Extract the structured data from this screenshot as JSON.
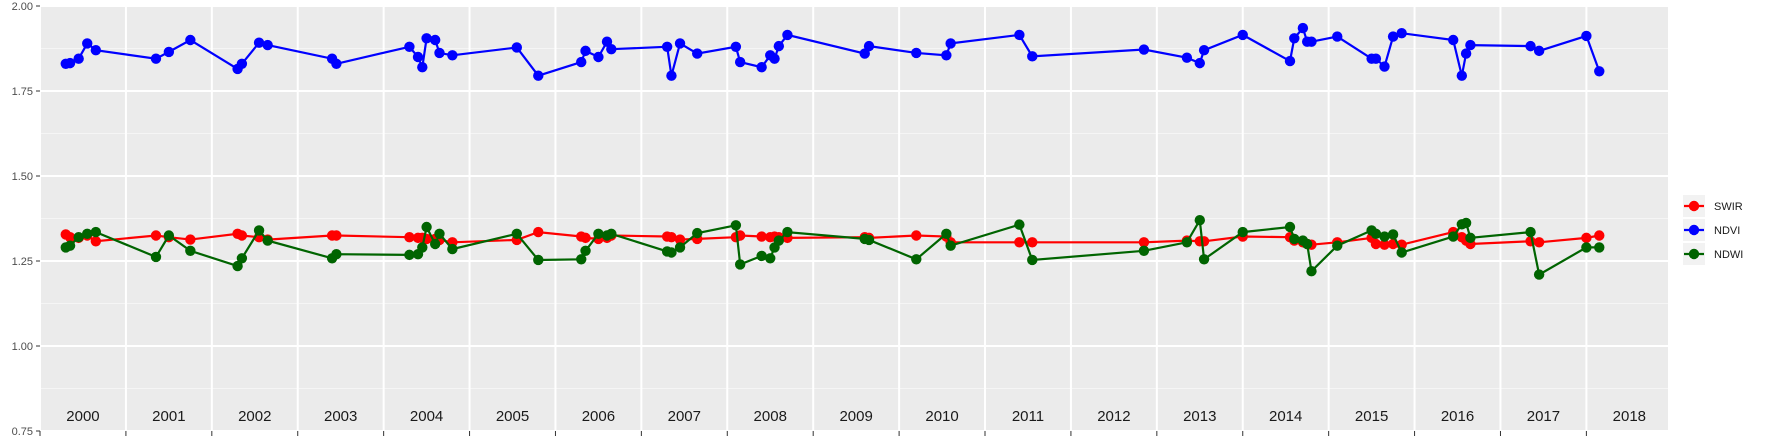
{
  "chart_data": {
    "type": "line",
    "title": "",
    "xlabel": "",
    "ylabel": "",
    "ylim": [
      0.75,
      2.0
    ],
    "xlim": [
      2000.0,
      2018.95
    ],
    "yticks": [
      "0.75",
      "1.00",
      "1.25",
      "1.50",
      "1.75",
      "2.00"
    ],
    "xtick_labels": [
      {
        "year": 2000,
        "label": "2000"
      },
      {
        "year": 2001,
        "label": "2001"
      },
      {
        "year": 2002,
        "label": "2002"
      },
      {
        "year": 2003,
        "label": "2003"
      },
      {
        "year": 2004,
        "label": "2004"
      },
      {
        "year": 2005,
        "label": "2005"
      },
      {
        "year": 2006,
        "label": "2006"
      },
      {
        "year": 2007,
        "label": "2007"
      },
      {
        "year": 2008,
        "label": "2008"
      },
      {
        "year": 2009,
        "label": "2009"
      },
      {
        "year": 2010,
        "label": "2010"
      },
      {
        "year": 2011,
        "label": "2011"
      },
      {
        "year": 2012,
        "label": "2012"
      },
      {
        "year": 2013,
        "label": "2013"
      },
      {
        "year": 2014,
        "label": "2014"
      },
      {
        "year": 2015,
        "label": "2015"
      },
      {
        "year": 2016,
        "label": "2016"
      },
      {
        "year": 2017,
        "label": "2017"
      },
      {
        "year": 2018,
        "label": "2018"
      }
    ],
    "grid": true,
    "legend_position": "right",
    "x": [
      2000.3,
      2000.35,
      2000.45,
      2000.55,
      2000.65,
      2001.35,
      2001.5,
      2001.75,
      2002.3,
      2002.35,
      2002.55,
      2002.65,
      2003.4,
      2003.45,
      2004.3,
      2004.4,
      2004.45,
      2004.5,
      2004.6,
      2004.65,
      2004.8,
      2005.55,
      2005.8,
      2006.3,
      2006.35,
      2006.5,
      2006.6,
      2006.65,
      2007.3,
      2007.35,
      2007.45,
      2007.65,
      2008.1,
      2008.15,
      2008.4,
      2008.5,
      2008.55,
      2008.6,
      2008.7,
      2009.6,
      2009.65,
      2010.2,
      2010.55,
      2010.6,
      2011.4,
      2011.55,
      2012.85,
      2013.35,
      2013.5,
      2013.55,
      2014.0,
      2014.55,
      2014.6,
      2014.7,
      2014.75,
      2014.8,
      2015.1,
      2015.5,
      2015.55,
      2015.65,
      2015.75,
      2015.85,
      2016.45,
      2016.55,
      2016.6,
      2016.65,
      2017.35,
      2017.45,
      2018.0,
      2018.15
    ],
    "series": [
      {
        "name": "SWIR",
        "color": "#ff0000",
        "values": [
          1.328,
          1.32,
          1.318,
          1.325,
          1.308,
          1.325,
          1.32,
          1.313,
          1.33,
          1.325,
          1.32,
          1.313,
          1.325,
          1.325,
          1.32,
          1.318,
          1.318,
          1.315,
          1.315,
          1.312,
          1.305,
          1.312,
          1.335,
          1.322,
          1.318,
          1.315,
          1.318,
          1.325,
          1.322,
          1.32,
          1.313,
          1.315,
          1.32,
          1.325,
          1.322,
          1.32,
          1.322,
          1.32,
          1.318,
          1.32,
          1.318,
          1.325,
          1.322,
          1.305,
          1.305,
          1.305,
          1.305,
          1.31,
          1.308,
          1.308,
          1.322,
          1.32,
          1.31,
          1.305,
          1.3,
          1.298,
          1.305,
          1.318,
          1.3,
          1.298,
          1.3,
          1.298,
          1.335,
          1.32,
          1.31,
          1.3,
          1.308,
          1.305,
          1.318,
          1.325
        ]
      },
      {
        "name": "NDVI",
        "color": "#0000ff",
        "values": [
          1.83,
          1.832,
          1.845,
          1.89,
          1.87,
          1.845,
          1.865,
          1.9,
          1.815,
          1.83,
          1.892,
          1.885,
          1.845,
          1.83,
          1.88,
          1.85,
          1.82,
          1.905,
          1.9,
          1.862,
          1.855,
          1.878,
          1.795,
          1.835,
          1.868,
          1.85,
          1.895,
          1.873,
          1.88,
          1.795,
          1.89,
          1.86,
          1.88,
          1.835,
          1.82,
          1.855,
          1.845,
          1.882,
          1.915,
          1.86,
          1.882,
          1.862,
          1.855,
          1.89,
          1.915,
          1.852,
          1.872,
          1.848,
          1.832,
          1.87,
          1.915,
          1.838,
          1.905,
          1.935,
          1.895,
          1.895,
          1.91,
          1.845,
          1.845,
          1.822,
          1.91,
          1.92,
          1.9,
          1.795,
          1.86,
          1.885,
          1.882,
          1.868,
          1.912,
          1.808
        ]
      },
      {
        "name": "NDWI",
        "color": "#006400",
        "values": [
          1.29,
          1.295,
          1.32,
          1.33,
          1.335,
          1.262,
          1.325,
          1.28,
          1.235,
          1.258,
          1.34,
          1.31,
          1.258,
          1.27,
          1.268,
          1.27,
          1.29,
          1.35,
          1.3,
          1.33,
          1.285,
          1.33,
          1.253,
          1.255,
          1.28,
          1.33,
          1.325,
          1.33,
          1.278,
          1.275,
          1.29,
          1.332,
          1.355,
          1.24,
          1.265,
          1.258,
          1.29,
          1.31,
          1.335,
          1.315,
          1.312,
          1.255,
          1.33,
          1.295,
          1.357,
          1.253,
          1.28,
          1.305,
          1.37,
          1.255,
          1.335,
          1.35,
          1.315,
          1.31,
          1.3,
          1.22,
          1.295,
          1.34,
          1.33,
          1.322,
          1.328,
          1.275,
          1.322,
          1.358,
          1.362,
          1.318,
          1.335,
          1.21,
          1.29,
          1.29
        ]
      }
    ]
  }
}
